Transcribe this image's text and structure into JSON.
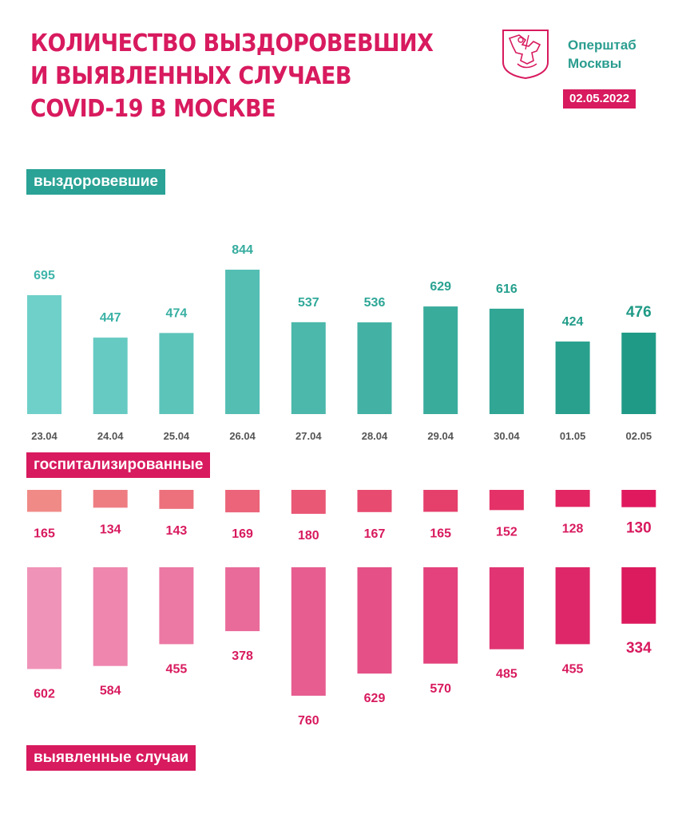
{
  "header": {
    "title_lines": [
      "КОЛИЧЕСТВО ВЫЗДОРОВЕВШИХ",
      "И ВЫЯВЛЕННЫХ СЛУЧАЕВ",
      "COVID-19 В МОСКВЕ"
    ],
    "org_lines": [
      "Оперштаб",
      "Москвы"
    ],
    "date": "02.05.2022",
    "logo_icon": "moscow-coat-of-arms-icon"
  },
  "labels": {
    "recovered": "выздоровевшие",
    "hospitalized": "госпитализированные",
    "cases": "выявленные случаи"
  },
  "colors": {
    "accent": "#d81a5e",
    "teal_start": "#6fd0c9",
    "teal_end": "#1f9a86",
    "hosp_start": "#f08a86",
    "hosp_end": "#e0195f",
    "cases_start": "#f093b8",
    "cases_end": "#dc1a5e",
    "date_label": "#555555"
  },
  "chart_data": [
    {
      "type": "bar",
      "name": "выздоровевшие",
      "categories": [
        "23.04",
        "24.04",
        "25.04",
        "26.04",
        "27.04",
        "28.04",
        "29.04",
        "30.04",
        "01.05",
        "02.05"
      ],
      "values": [
        695,
        447,
        474,
        844,
        537,
        536,
        629,
        616,
        424,
        476
      ]
    },
    {
      "type": "bar",
      "name": "госпитализированные",
      "categories": [
        "23.04",
        "24.04",
        "25.04",
        "26.04",
        "27.04",
        "28.04",
        "29.04",
        "30.04",
        "01.05",
        "02.05"
      ],
      "values": [
        165,
        134,
        143,
        169,
        180,
        167,
        165,
        152,
        128,
        130
      ]
    },
    {
      "type": "bar",
      "name": "выявленные случаи",
      "categories": [
        "23.04",
        "24.04",
        "25.04",
        "26.04",
        "27.04",
        "28.04",
        "29.04",
        "30.04",
        "01.05",
        "02.05"
      ],
      "values": [
        602,
        584,
        455,
        378,
        760,
        629,
        570,
        485,
        455,
        334
      ]
    }
  ]
}
